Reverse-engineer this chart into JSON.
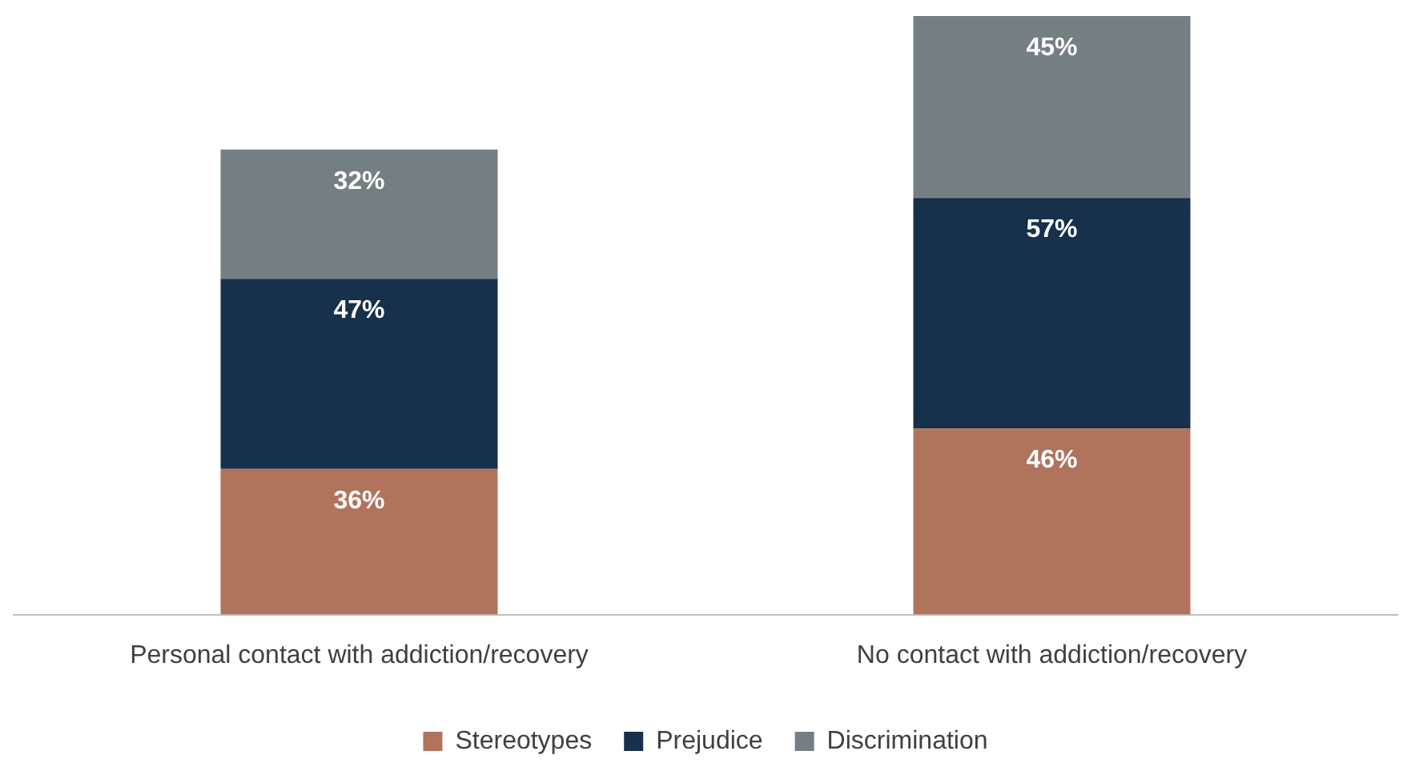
{
  "chart_data": {
    "type": "bar",
    "stacked": true,
    "categories": [
      "Personal contact with addiction/recovery",
      "No contact with addiction/recovery"
    ],
    "series": [
      {
        "name": "Stereotypes",
        "color": "#b0735c",
        "values": [
          36,
          46
        ],
        "value_labels": [
          "36%",
          "46%"
        ]
      },
      {
        "name": "Prejudice",
        "color": "#17304b",
        "values": [
          47,
          57
        ],
        "value_labels": [
          "47%",
          "57%"
        ]
      },
      {
        "name": "Discrimination",
        "color": "#737f83",
        "values": [
          32,
          45
        ],
        "value_labels": [
          "32%",
          "45%"
        ]
      }
    ],
    "legend": "bottom",
    "grid": false
  }
}
